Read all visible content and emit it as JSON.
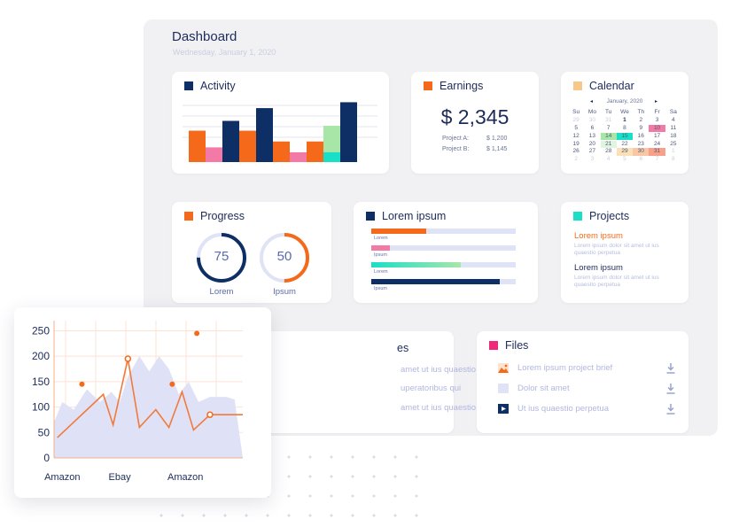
{
  "dashboard": {
    "title": "Dashboard",
    "date": "Wednesday, January 1, 2020"
  },
  "colors": {
    "navy": "#0e2f66",
    "orange": "#f46a1a",
    "pink": "#f37aa6",
    "mint": "#a8e6a8",
    "teal": "#19dfc7",
    "lavender": "#dee2f7",
    "calendar_square": "#f6c98a"
  },
  "activity": {
    "title": "Activity",
    "bars": [
      {
        "value": 32,
        "color": "#f46a1a"
      },
      {
        "value": 15,
        "color": "#f37aa6"
      },
      {
        "value": 42,
        "color": "#0e2f66"
      },
      {
        "value": 32,
        "color": "#f46a1a"
      },
      {
        "value": 55,
        "color": "#0e2f66"
      },
      {
        "value": 21,
        "color": "#f46a1a"
      },
      {
        "value": 10,
        "color": "#f37aa6"
      },
      {
        "value": 21,
        "color": "#f46a1a"
      },
      {
        "value": 37,
        "color": "#a8e6a8"
      },
      {
        "value": 10,
        "color": "#19dfc7"
      },
      {
        "value": 61,
        "color": "#0e2f66"
      }
    ]
  },
  "earnings": {
    "title": "Earnings",
    "value": "$ 2,345",
    "rows": [
      {
        "label": "Project A:",
        "amount": "$ 1,200"
      },
      {
        "label": "Project B:",
        "amount": "$ 1,145"
      }
    ]
  },
  "calendar": {
    "title": "Calendar",
    "month": "January, 2020",
    "prev": "◂",
    "next": "▸",
    "weekdays": [
      "Su",
      "Mo",
      "Tu",
      "We",
      "Th",
      "Fr",
      "Sa"
    ],
    "days": [
      {
        "d": "29",
        "m": true
      },
      {
        "d": "30",
        "m": true
      },
      {
        "d": "31",
        "m": true
      },
      {
        "d": "1",
        "b": true
      },
      {
        "d": "2"
      },
      {
        "d": "3"
      },
      {
        "d": "4"
      },
      {
        "d": "5"
      },
      {
        "d": "6"
      },
      {
        "d": "7"
      },
      {
        "d": "8"
      },
      {
        "d": "9"
      },
      {
        "d": "10",
        "hl": "#f37aa6"
      },
      {
        "d": "11"
      },
      {
        "d": "12"
      },
      {
        "d": "13"
      },
      {
        "d": "14",
        "hl": "#a8e6a8"
      },
      {
        "d": "15",
        "hl": "#19dfc7"
      },
      {
        "d": "16"
      },
      {
        "d": "17"
      },
      {
        "d": "18"
      },
      {
        "d": "19"
      },
      {
        "d": "20"
      },
      {
        "d": "21",
        "hl": "#dff5df"
      },
      {
        "d": "22"
      },
      {
        "d": "23"
      },
      {
        "d": "24"
      },
      {
        "d": "25"
      },
      {
        "d": "26"
      },
      {
        "d": "27"
      },
      {
        "d": "28"
      },
      {
        "d": "29",
        "hl": "#fbe0b8"
      },
      {
        "d": "30",
        "hl": "#f8c8a6"
      },
      {
        "d": "31",
        "hl": "#f8a08a"
      },
      {
        "d": "1",
        "m": true
      },
      {
        "d": "2",
        "m": true
      },
      {
        "d": "3",
        "m": true
      },
      {
        "d": "4",
        "m": true
      },
      {
        "d": "5",
        "m": true
      },
      {
        "d": "6",
        "m": true
      },
      {
        "d": "7",
        "m": true
      },
      {
        "d": "8",
        "m": true
      }
    ]
  },
  "progress": {
    "title": "Progress",
    "rings": [
      {
        "value": "75",
        "percent": 75,
        "label": "Lorem",
        "color": "#0e2f66"
      },
      {
        "value": "50",
        "percent": 50,
        "label": "Ipsum",
        "color": "#f46a1a"
      }
    ]
  },
  "lorem_ipsum": {
    "title": "Lorem ipsum",
    "bars": [
      {
        "caption": "Lorem",
        "fill": 0.38,
        "color": "#f46a1a"
      },
      {
        "caption": "Ipsum",
        "fill": 0.13,
        "color": "#f37aa6"
      },
      {
        "caption": "Lorem",
        "fill": 0.62,
        "color": "linear-gradient(90deg,#19dfc7,#a8e6a8)"
      },
      {
        "caption": "Ipsum",
        "fill": 0.89,
        "color": "#0e2f66"
      }
    ]
  },
  "projects": {
    "title": "Projects",
    "items": [
      {
        "name": "Lorem ipsum",
        "desc": "Lorem ipsum dolor sit amet ut ius quaestio perpetua",
        "color": "#f46a1a"
      },
      {
        "name": "Lorem ipsum",
        "desc": "Lorem ipsum dolor sit amet ut ius quaestio perpetua",
        "color": "#1c2b5a"
      }
    ]
  },
  "partial_card": {
    "title_fragment": "es",
    "lines": [
      "amet ut ius quaestio perpetua",
      "uperatoribus qui",
      "amet ut ius quaestio"
    ]
  },
  "files": {
    "title": "Files",
    "items": [
      {
        "name": "Lorem ipsum project brief",
        "icon": "image-file-icon"
      },
      {
        "name": "Dolor sit amet",
        "icon": "document-file-icon"
      },
      {
        "name": "Ut ius quaestio perpetua",
        "icon": "video-file-icon"
      }
    ]
  },
  "chart_data": {
    "type": "line",
    "ylim": [
      0,
      270
    ],
    "yticks": [
      "250",
      "200",
      "150",
      "100",
      "50",
      "0"
    ],
    "ytick_values": [
      250,
      200,
      150,
      100,
      50,
      0
    ],
    "xtick_labels": [
      "Amazon",
      "Ebay",
      "Amazon"
    ],
    "xtick_positions": [
      5,
      40,
      80
    ],
    "xlim": [
      0,
      115
    ],
    "area": [
      [
        0,
        70
      ],
      [
        5,
        110
      ],
      [
        12,
        95
      ],
      [
        20,
        135
      ],
      [
        28,
        110
      ],
      [
        35,
        130
      ],
      [
        40,
        110
      ],
      [
        45,
        160
      ],
      [
        52,
        200
      ],
      [
        58,
        170
      ],
      [
        64,
        200
      ],
      [
        70,
        175
      ],
      [
        76,
        125
      ],
      [
        82,
        150
      ],
      [
        88,
        110
      ],
      [
        95,
        120
      ],
      [
        105,
        120
      ],
      [
        110,
        115
      ],
      [
        115,
        0
      ]
    ],
    "line": [
      [
        2,
        40
      ],
      [
        30,
        125
      ],
      [
        36,
        65
      ],
      [
        45,
        195
      ],
      [
        52,
        60
      ],
      [
        62,
        95
      ],
      [
        70,
        60
      ],
      [
        78,
        130
      ],
      [
        85,
        55
      ],
      [
        95,
        85
      ],
      [
        115,
        85
      ]
    ],
    "dots": [
      [
        17,
        145
      ],
      [
        72,
        145
      ],
      [
        87,
        245
      ]
    ],
    "rings": [
      [
        45,
        195
      ],
      [
        95,
        85
      ]
    ]
  }
}
